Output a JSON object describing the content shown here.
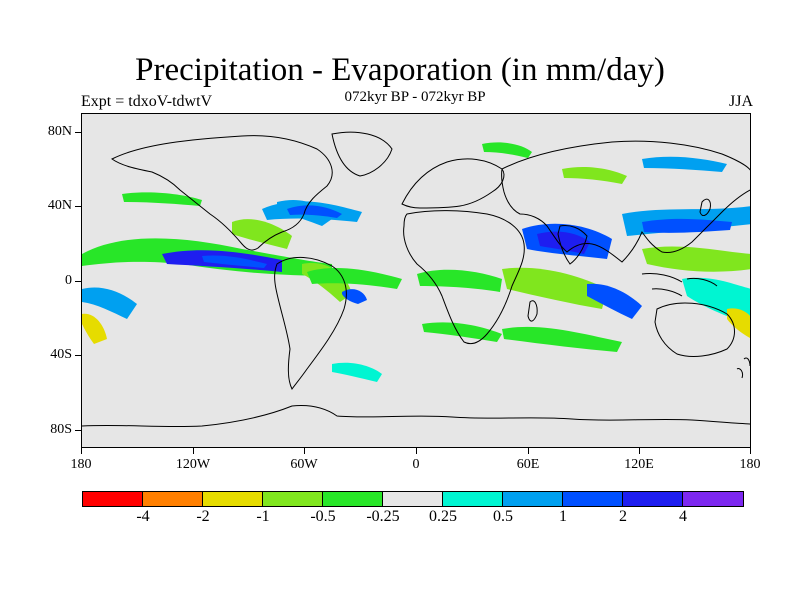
{
  "title": "Precipitation - Evaporation (in mm/day)",
  "subtitle": "072kyr BP - 072kyr BP",
  "left_label": "Expt = tdxoV-tdwtV",
  "right_label": "JJA",
  "y_ticks": [
    "80N",
    "40N",
    "0",
    "40S",
    "80S"
  ],
  "x_ticks": [
    "180",
    "120W",
    "60W",
    "0",
    "60E",
    "120E",
    "180"
  ],
  "colorbar": {
    "colors": [
      "#ff0000",
      "#ff7f00",
      "#e6dc00",
      "#80e61e",
      "#28e628",
      "#e6e6e6",
      "#00f5d2",
      "#00a0f0",
      "#0050ff",
      "#1e1ef0",
      "#7d28f0"
    ],
    "labels": [
      "-4",
      "-2",
      "-1",
      "-0.5",
      "-0.25",
      "0.25",
      "0.5",
      "1",
      "2",
      "4"
    ]
  },
  "map": {
    "lon_range": [
      -180,
      180
    ],
    "lat_range": [
      -90,
      90
    ],
    "background_color": "#e6e6e6"
  }
}
